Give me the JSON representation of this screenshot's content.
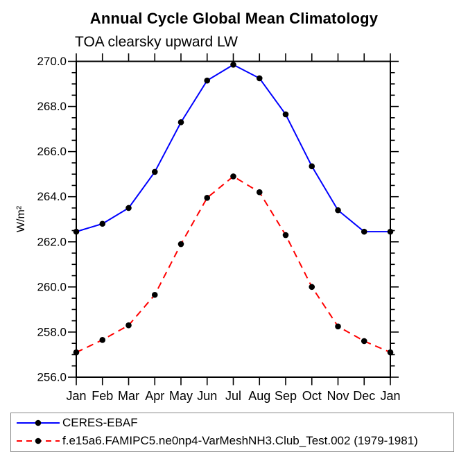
{
  "chart_data": {
    "type": "line",
    "title": "Annual Cycle Global Mean Climatology",
    "subtitle": "TOA clearsky upward LW",
    "ylabel": "W/m²",
    "categories": [
      "Jan",
      "Feb",
      "Mar",
      "Apr",
      "May",
      "Jun",
      "Jul",
      "Aug",
      "Sep",
      "Oct",
      "Nov",
      "Dec",
      "Jan"
    ],
    "ylim": [
      256.0,
      270.0
    ],
    "ytick_interval": 2.0,
    "yminor_interval": 0.5,
    "ytick_labels": [
      "256.0",
      "258.0",
      "260.0",
      "262.0",
      "264.0",
      "266.0",
      "268.0",
      "270.0"
    ],
    "grid": false,
    "legend_position": "bottom-left-boxed",
    "series": [
      {
        "name": "CERES-EBAF",
        "color": "#0000ff",
        "line_style": "solid",
        "marker": "filled-circle",
        "marker_color": "#000000",
        "values": [
          262.45,
          262.8,
          263.5,
          265.1,
          267.3,
          269.15,
          269.85,
          269.25,
          267.65,
          265.35,
          263.4,
          262.45,
          262.45
        ]
      },
      {
        "name": "f.e15a6.FAMIPC5.ne0np4-VarMeshNH3.Club_Test.002 (1979-1981)",
        "color": "#ff0000",
        "line_style": "dashed",
        "marker": "filled-circle",
        "marker_color": "#000000",
        "values": [
          257.1,
          257.65,
          258.3,
          259.65,
          261.9,
          263.95,
          264.9,
          264.2,
          262.3,
          260.0,
          258.25,
          257.6,
          257.1
        ]
      }
    ]
  },
  "colors": {
    "axis": "#000000",
    "background": "#ffffff",
    "legend_border": "#888888",
    "text": "#000000"
  }
}
